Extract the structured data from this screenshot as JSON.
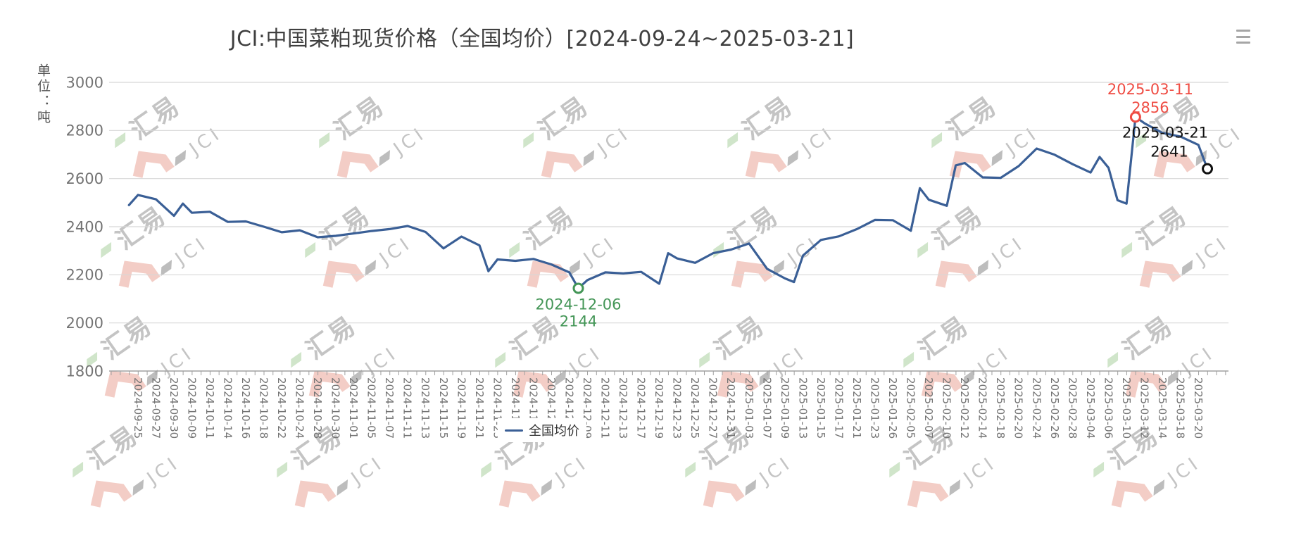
{
  "header": {
    "title": "JCI:中国菜粕现货价格（全国均价）[2024-09-24~2025-03-21]",
    "menu_icon": "hamburger-menu-icon"
  },
  "y_axis": {
    "unit_label": "单位：吨",
    "ticks": [
      3000,
      2800,
      2600,
      2400,
      2200,
      2000,
      1800
    ]
  },
  "legend": {
    "label": "全国均价"
  },
  "watermark": {
    "text_cn": "汇易",
    "text_en": "JCI"
  },
  "colors": {
    "line": "#3a5f96",
    "grid": "#d7d7d7",
    "axis": "#a0a0a0",
    "tick_text": "#737373",
    "title_text": "#3f3f3f",
    "min_annotation": "#449657",
    "max_annotation": "#ef4c43",
    "last_annotation": "#111111",
    "watermark_pink": "#f3cdc6",
    "watermark_green": "#d0e5ca",
    "watermark_gray_text": "#c4c4c4",
    "watermark_gray_shape": "#bdbdbd"
  },
  "annotations": {
    "min": {
      "date": "2024-12-06",
      "value": 2144
    },
    "max": {
      "date": "2025-03-11",
      "value": 2856
    },
    "last": {
      "date": "2025-03-21",
      "value": 2641
    }
  },
  "chart_data": {
    "type": "line",
    "title": "JCI:中国菜粕现货价格（全国均价）[2024-09-24~2025-03-21]",
    "ylabel": "单位：吨",
    "ylim": [
      1800,
      3000
    ],
    "y_ticks": [
      3000,
      2800,
      2600,
      2400,
      2200,
      2000,
      1800
    ],
    "grid": "horizontal",
    "legend_position": "bottom",
    "x_tick_labels": [
      "2024-09-25",
      "2024-09-27",
      "2024-09-30",
      "2024-10-09",
      "2024-10-11",
      "2024-10-14",
      "2024-10-16",
      "2024-10-18",
      "2024-10-22",
      "2024-10-24",
      "2024-10-28",
      "2024-10-30",
      "2024-11-01",
      "2024-11-05",
      "2024-11-07",
      "2024-11-11",
      "2024-11-13",
      "2024-11-15",
      "2024-11-19",
      "2024-11-21",
      "2024-11-25",
      "2024-11-27",
      "2024-11-29",
      "2024-12-03",
      "2024-12-05",
      "2024-12-09",
      "2024-12-11",
      "2024-12-13",
      "2024-12-17",
      "2024-12-19",
      "2024-12-23",
      "2024-12-25",
      "2024-12-27",
      "2024-12-31",
      "2025-01-03",
      "2025-01-07",
      "2025-01-09",
      "2025-01-13",
      "2025-01-15",
      "2025-01-17",
      "2025-01-21",
      "2025-01-23",
      "2025-01-26",
      "2025-02-05",
      "2025-02-07",
      "2025-02-10",
      "2025-02-12",
      "2025-02-14",
      "2025-02-18",
      "2025-02-20",
      "2025-02-24",
      "2025-02-26",
      "2025-02-28",
      "2025-03-04",
      "2025-03-06",
      "2025-03-10",
      "2025-03-12",
      "2025-03-14",
      "2025-03-18",
      "2025-03-20"
    ],
    "series": [
      {
        "name": "全国均价",
        "points": [
          {
            "date": "2024-09-24",
            "value": 2490
          },
          {
            "date": "2024-09-25",
            "value": 2532
          },
          {
            "date": "2024-09-27",
            "value": 2514
          },
          {
            "date": "2024-09-30",
            "value": 2445
          },
          {
            "date": "2024-10-08",
            "value": 2496
          },
          {
            "date": "2024-10-09",
            "value": 2458
          },
          {
            "date": "2024-10-11",
            "value": 2462
          },
          {
            "date": "2024-10-14",
            "value": 2420
          },
          {
            "date": "2024-10-16",
            "value": 2422
          },
          {
            "date": "2024-10-18",
            "value": 2400
          },
          {
            "date": "2024-10-22",
            "value": 2377
          },
          {
            "date": "2024-10-24",
            "value": 2385
          },
          {
            "date": "2024-10-28",
            "value": 2356
          },
          {
            "date": "2024-10-30",
            "value": 2362
          },
          {
            "date": "2024-11-01",
            "value": 2372
          },
          {
            "date": "2024-11-05",
            "value": 2382
          },
          {
            "date": "2024-11-07",
            "value": 2390
          },
          {
            "date": "2024-11-11",
            "value": 2403
          },
          {
            "date": "2024-11-13",
            "value": 2378
          },
          {
            "date": "2024-11-15",
            "value": 2310
          },
          {
            "date": "2024-11-19",
            "value": 2359
          },
          {
            "date": "2024-11-21",
            "value": 2322
          },
          {
            "date": "2024-11-22",
            "value": 2215
          },
          {
            "date": "2024-11-25",
            "value": 2264
          },
          {
            "date": "2024-11-27",
            "value": 2258
          },
          {
            "date": "2024-11-29",
            "value": 2266
          },
          {
            "date": "2024-12-03",
            "value": 2243
          },
          {
            "date": "2024-12-05",
            "value": 2210
          },
          {
            "date": "2024-12-06",
            "value": 2144
          },
          {
            "date": "2024-12-09",
            "value": 2178
          },
          {
            "date": "2024-12-11",
            "value": 2210
          },
          {
            "date": "2024-12-13",
            "value": 2206
          },
          {
            "date": "2024-12-17",
            "value": 2212
          },
          {
            "date": "2024-12-19",
            "value": 2163
          },
          {
            "date": "2024-12-20",
            "value": 2290
          },
          {
            "date": "2024-12-23",
            "value": 2268
          },
          {
            "date": "2024-12-25",
            "value": 2250
          },
          {
            "date": "2024-12-27",
            "value": 2290
          },
          {
            "date": "2024-12-31",
            "value": 2305
          },
          {
            "date": "2025-01-03",
            "value": 2330
          },
          {
            "date": "2025-01-07",
            "value": 2225
          },
          {
            "date": "2025-01-09",
            "value": 2185
          },
          {
            "date": "2025-01-10",
            "value": 2170
          },
          {
            "date": "2025-01-13",
            "value": 2280
          },
          {
            "date": "2025-01-15",
            "value": 2345
          },
          {
            "date": "2025-01-17",
            "value": 2360
          },
          {
            "date": "2025-01-21",
            "value": 2390
          },
          {
            "date": "2025-01-23",
            "value": 2428
          },
          {
            "date": "2025-01-26",
            "value": 2427
          },
          {
            "date": "2025-02-05",
            "value": 2383
          },
          {
            "date": "2025-02-06",
            "value": 2560
          },
          {
            "date": "2025-02-07",
            "value": 2512
          },
          {
            "date": "2025-02-10",
            "value": 2487
          },
          {
            "date": "2025-02-11",
            "value": 2655
          },
          {
            "date": "2025-02-12",
            "value": 2665
          },
          {
            "date": "2025-02-14",
            "value": 2605
          },
          {
            "date": "2025-02-18",
            "value": 2603
          },
          {
            "date": "2025-02-20",
            "value": 2652
          },
          {
            "date": "2025-02-24",
            "value": 2725
          },
          {
            "date": "2025-02-26",
            "value": 2699
          },
          {
            "date": "2025-02-28",
            "value": 2660
          },
          {
            "date": "2025-03-04",
            "value": 2625
          },
          {
            "date": "2025-03-05",
            "value": 2690
          },
          {
            "date": "2025-03-06",
            "value": 2645
          },
          {
            "date": "2025-03-07",
            "value": 2510
          },
          {
            "date": "2025-03-10",
            "value": 2496
          },
          {
            "date": "2025-03-11",
            "value": 2856
          },
          {
            "date": "2025-03-12",
            "value": 2830
          },
          {
            "date": "2025-03-14",
            "value": 2790
          },
          {
            "date": "2025-03-18",
            "value": 2775
          },
          {
            "date": "2025-03-20",
            "value": 2740
          },
          {
            "date": "2025-03-21",
            "value": 2641
          }
        ]
      }
    ]
  }
}
